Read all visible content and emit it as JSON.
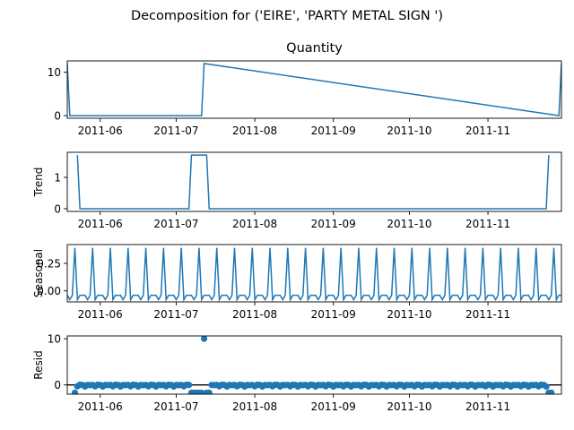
{
  "figure": {
    "suptitle": "Decomposition for ('EIRE', 'PARTY METAL SIGN ')"
  },
  "chart_data": [
    {
      "type": "line",
      "panel": "observed",
      "title": "Quantity",
      "ylabel": "",
      "ylim": [
        -0.6,
        12.6
      ],
      "yticks": [
        "0",
        "10"
      ],
      "ytick_values": [
        0,
        10
      ],
      "xticks": [
        "2011-06",
        "2011-07",
        "2011-08",
        "2011-09",
        "2011-10",
        "2011-11"
      ],
      "x": [
        "2011-05-19",
        "2011-05-20",
        "2011-07-10",
        "2011-07-11",
        "2011-07-12",
        "2011-11-29",
        "2011-11-30"
      ],
      "values": [
        12,
        0,
        0,
        0,
        12,
        0,
        12
      ],
      "color": "#1f77b4"
    },
    {
      "type": "line",
      "panel": "trend",
      "ylabel": "Trend",
      "ylim": [
        -0.086,
        1.8
      ],
      "yticks": [
        "0",
        "1"
      ],
      "ytick_values": [
        0,
        1
      ],
      "xticks": [
        "2011-06",
        "2011-07",
        "2011-08",
        "2011-09",
        "2011-10",
        "2011-11"
      ],
      "x": [
        "2011-05-23",
        "2011-05-24",
        "2011-07-06",
        "2011-07-07",
        "2011-07-13",
        "2011-07-14",
        "2011-11-24",
        "2011-11-25"
      ],
      "values": [
        1.71,
        0,
        0,
        1.71,
        1.71,
        0,
        0,
        1.71
      ],
      "color": "#1f77b4"
    },
    {
      "type": "line",
      "panel": "seasonal",
      "ylabel": "Seasonal",
      "ylim": [
        -0.1,
        0.42
      ],
      "yticks": [
        "0.00",
        "0.25"
      ],
      "ytick_values": [
        0,
        0.25
      ],
      "xticks": [
        "2011-06",
        "2011-07",
        "2011-08",
        "2011-09",
        "2011-10",
        "2011-11"
      ],
      "period": 7,
      "pattern": [
        -0.04,
        -0.08,
        -0.04,
        0.39,
        -0.08,
        -0.04,
        -0.04
      ],
      "x_start": "2011-05-19",
      "x_end": "2011-11-30",
      "color": "#1f77b4"
    },
    {
      "type": "scatter",
      "panel": "resid",
      "ylabel": "Resid",
      "ylim": [
        -2,
        10.6
      ],
      "yticks": [
        "0",
        "10"
      ],
      "ytick_values": [
        0,
        10
      ],
      "xticks": [
        "2011-06",
        "2011-07",
        "2011-08",
        "2011-09",
        "2011-10",
        "2011-11"
      ],
      "x_start": "2011-05-22",
      "x_end": "2011-11-26",
      "baseline_pattern": [
        0,
        -0.3,
        0.05,
        0,
        -0.35,
        0,
        -0.05
      ],
      "outliers": [
        {
          "x": "2011-05-22",
          "value": -1.7
        },
        {
          "x": "2011-07-07",
          "value": -1.7
        },
        {
          "x": "2011-07-08",
          "value": -1.7
        },
        {
          "x": "2011-07-09",
          "value": -1.7
        },
        {
          "x": "2011-07-10",
          "value": -1.7
        },
        {
          "x": "2011-07-11",
          "value": -1.7
        },
        {
          "x": "2011-07-12",
          "value": 10
        },
        {
          "x": "2011-07-13",
          "value": -1.7
        },
        {
          "x": "2011-07-14",
          "value": -1.7
        },
        {
          "x": "2011-11-25",
          "value": -1.7
        },
        {
          "x": "2011-11-26",
          "value": -1.7
        }
      ],
      "zero_line": true,
      "color": "#1f77b4"
    }
  ]
}
